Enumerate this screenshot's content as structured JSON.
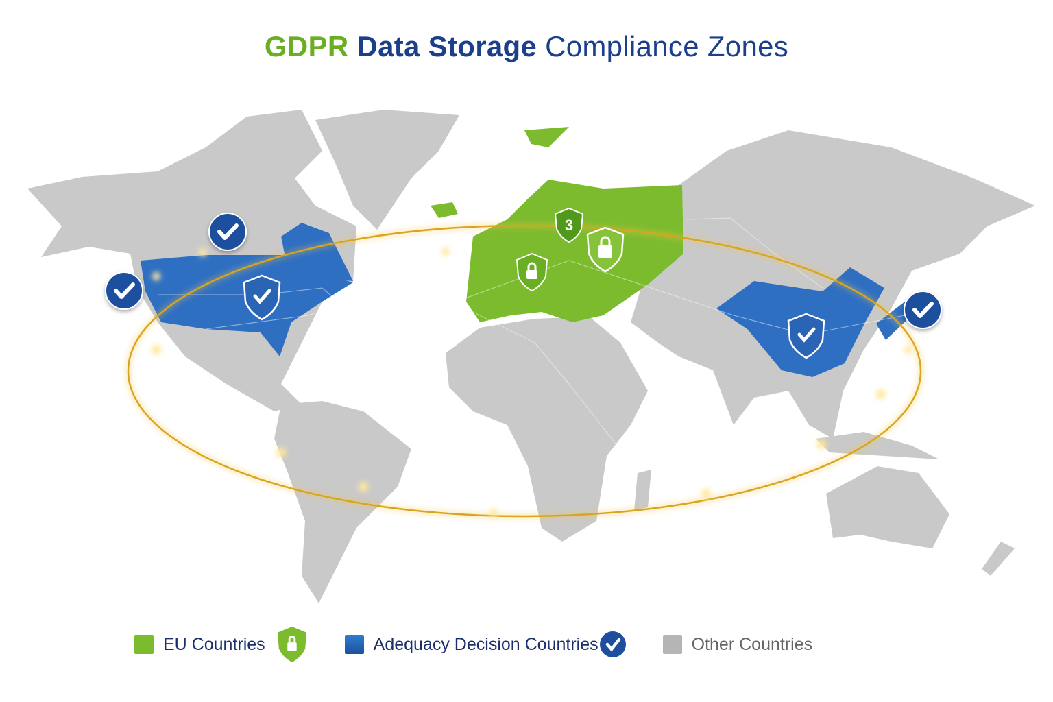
{
  "title": {
    "part1": "GDPR",
    "part2": "Data Storage",
    "part3": "Compliance Zones"
  },
  "colors": {
    "eu": "#7cbb2e",
    "adequacy": "#2f6fc2",
    "other": "#c8c8c8",
    "ring": "#e0b030",
    "badge": "#1d4f9e"
  },
  "map": {
    "eu_shield_icons": [
      "shield-lock-icon",
      "shield-number-icon",
      "shield-lock-icon"
    ],
    "eu_shield_number": "3",
    "adequacy_badges": [
      "check-circle-icon",
      "check-circle-icon",
      "check-circle-icon"
    ],
    "adequacy_shields": [
      "shield-check-icon",
      "shield-check-icon"
    ]
  },
  "legend": {
    "items": [
      {
        "label": "EU Countries",
        "icon": "shield-lock-icon"
      },
      {
        "label": "Adequacy Decision Countries",
        "icon": "check-circle-icon"
      },
      {
        "label": "Other Countries"
      }
    ]
  }
}
